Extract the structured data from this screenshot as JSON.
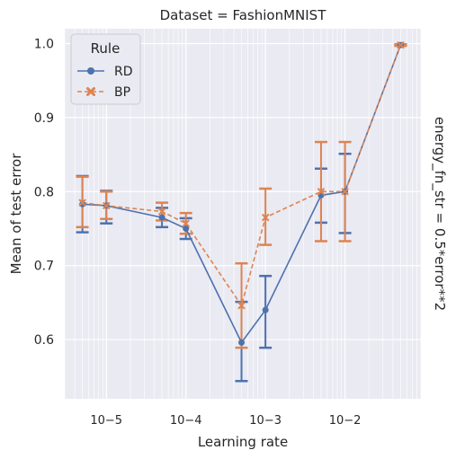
{
  "chart_data": {
    "type": "line",
    "title": "Dataset = FashionMNIST",
    "row_label": "energy_fn_str = 0.5*error**2",
    "xlabel": "Learning rate",
    "ylabel": "Mean of test error",
    "xscale": "log",
    "xlim": [
      3e-06,
      0.09
    ],
    "ylim": [
      0.52,
      1.02
    ],
    "grid": true,
    "legend_placement": "top-left",
    "legend_title": "Rule",
    "x_ticks": [
      {
        "value": 1e-05,
        "label": "10−5"
      },
      {
        "value": 0.0001,
        "label": "10−4"
      },
      {
        "value": 0.001,
        "label": "10−3"
      },
      {
        "value": 0.01,
        "label": "10−2"
      }
    ],
    "y_ticks": [
      0.6,
      0.7,
      0.8,
      0.9,
      1.0
    ],
    "y_tick_labels": [
      "0.6",
      "0.7",
      "0.8",
      "0.9",
      "1.0"
    ],
    "x": [
      5e-06,
      1e-05,
      5e-05,
      0.0001,
      0.0005,
      0.001,
      0.005,
      0.01,
      0.05
    ],
    "series": [
      {
        "name": "RD",
        "color": "#4c72b0",
        "marker": "circle",
        "linestyle": "solid",
        "values": [
          0.783,
          0.781,
          0.765,
          0.75,
          0.596,
          0.64,
          0.795,
          0.8,
          0.998
        ],
        "err_low": [
          0.745,
          0.757,
          0.752,
          0.736,
          0.544,
          0.589,
          0.758,
          0.744,
          0.997
        ],
        "err_high": [
          0.821,
          0.801,
          0.778,
          0.764,
          0.651,
          0.686,
          0.831,
          0.851,
          0.999
        ]
      },
      {
        "name": "BP",
        "color": "#dd8452",
        "marker": "x",
        "linestyle": "dashed",
        "values": [
          0.785,
          0.781,
          0.773,
          0.757,
          0.646,
          0.765,
          0.8,
          0.8,
          0.998
        ],
        "err_low": [
          0.752,
          0.763,
          0.761,
          0.743,
          0.589,
          0.728,
          0.733,
          0.733,
          0.997
        ],
        "err_high": [
          0.82,
          0.8,
          0.785,
          0.771,
          0.703,
          0.804,
          0.867,
          0.867,
          0.999
        ]
      }
    ]
  }
}
